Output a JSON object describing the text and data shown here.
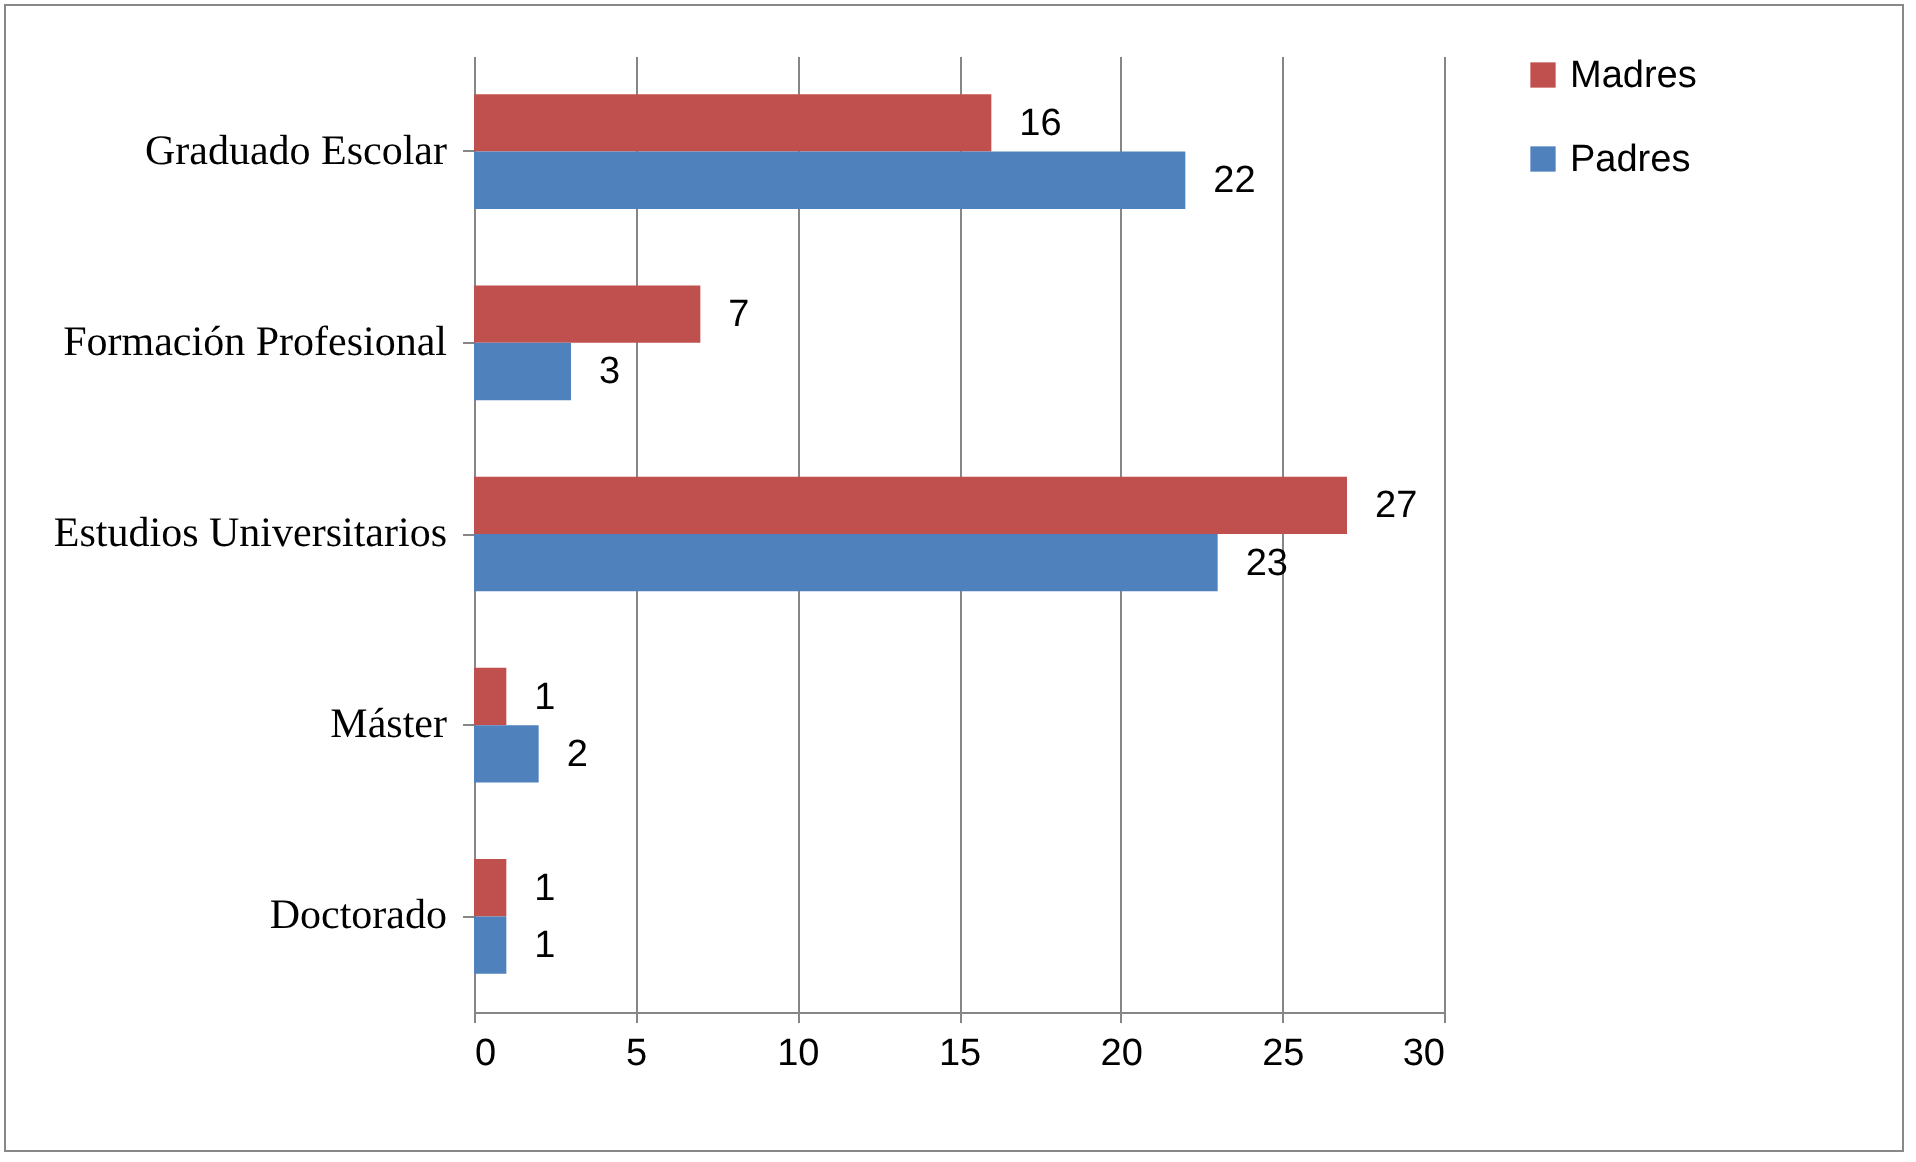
{
  "chart_data": {
    "type": "bar",
    "orientation": "horizontal",
    "categories": [
      "Graduado Escolar",
      "Formación Profesional",
      "Estudios Universitarios",
      "Máster",
      "Doctorado"
    ],
    "series": [
      {
        "name": "Madres",
        "color": "#c0504d",
        "values": [
          16,
          7,
          27,
          1,
          1
        ]
      },
      {
        "name": "Padres",
        "color": "#4f81bd",
        "values": [
          22,
          3,
          23,
          2,
          1
        ]
      }
    ],
    "xlim": [
      0,
      30
    ],
    "xticks": [
      0,
      5,
      10,
      15,
      20,
      25,
      30
    ],
    "grid": "x",
    "legend": "right",
    "data_labels": true
  }
}
